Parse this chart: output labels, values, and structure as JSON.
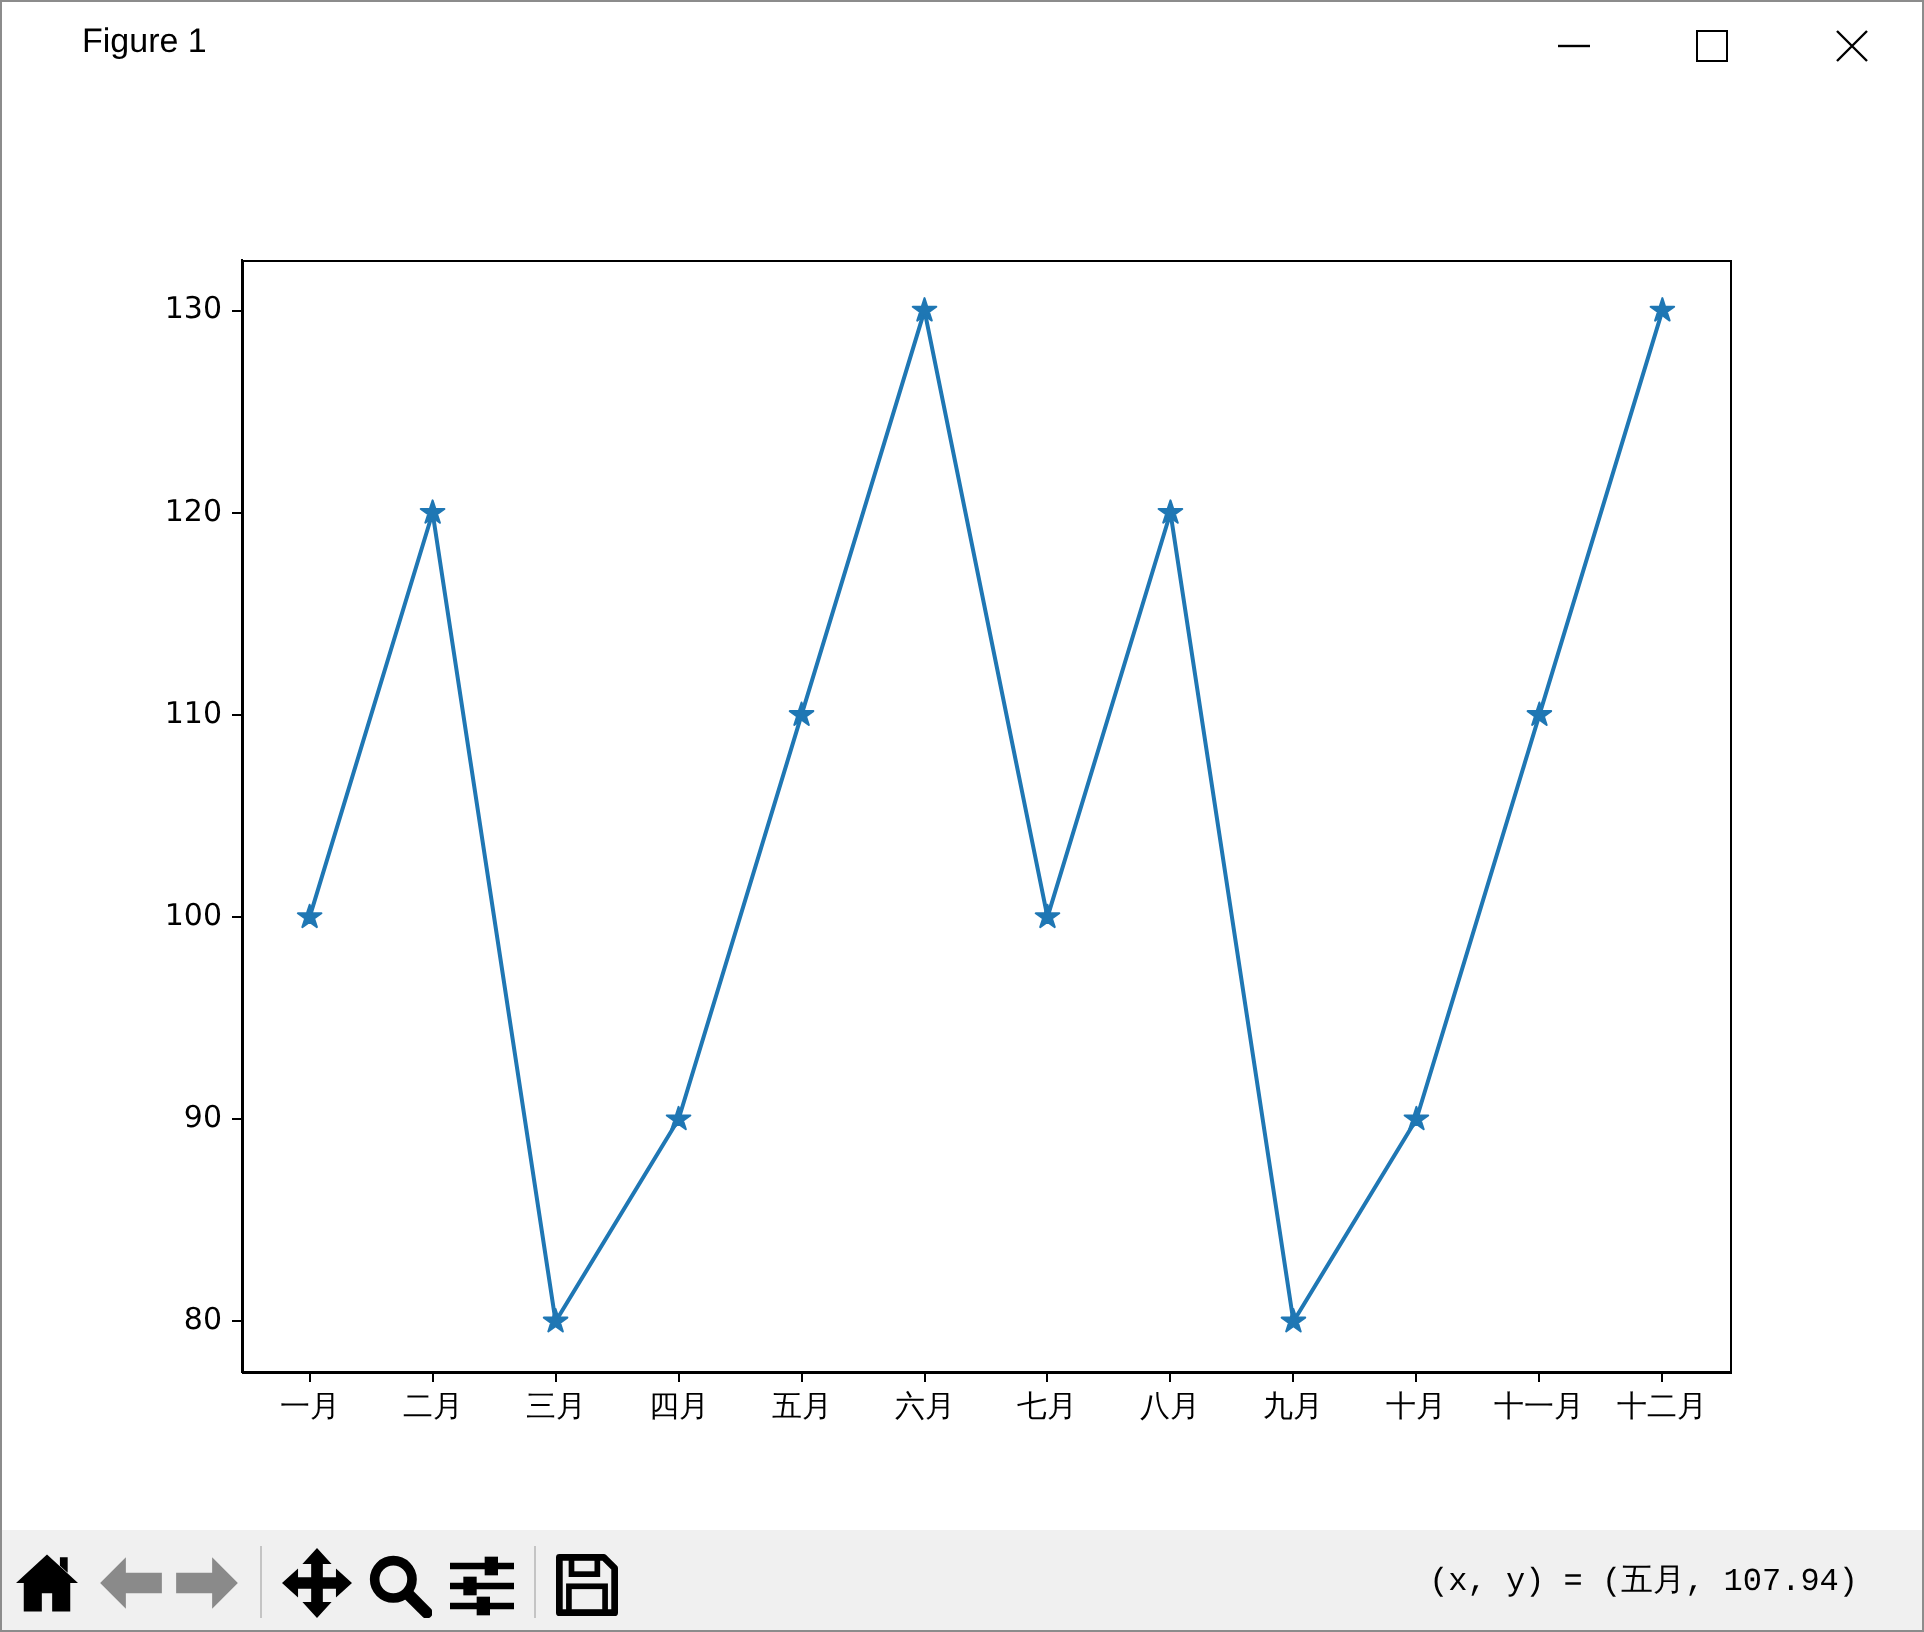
{
  "chart_data": {
    "type": "line",
    "categories": [
      "一月",
      "二月",
      "三月",
      "四月",
      "五月",
      "六月",
      "七月",
      "八月",
      "九月",
      "十月",
      "十一月",
      "十二月"
    ],
    "values": [
      100,
      120,
      80,
      90,
      110,
      130,
      100,
      120,
      80,
      90,
      110,
      130
    ],
    "color": "#1f77b4",
    "marker": "star",
    "ylim": [
      77.5,
      132.5
    ],
    "yticks": [
      80,
      90,
      100,
      110,
      120,
      130
    ],
    "grid": false,
    "legend": false,
    "annotations": [
      "Figure 1",
      "(x, y) = (五月, 107.94)"
    ]
  }
}
